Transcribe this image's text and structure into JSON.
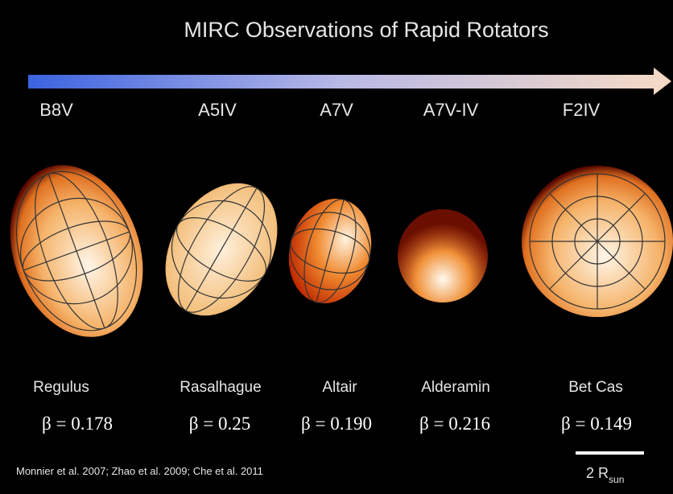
{
  "title": "MIRC Observations of Rapid Rotators",
  "stars": [
    {
      "spectral_type": "B8V",
      "name": "Regulus",
      "beta": "β = 0.178"
    },
    {
      "spectral_type": "A5IV",
      "name": "Rasalhague",
      "beta": "β = 0.25"
    },
    {
      "spectral_type": "A7V",
      "name": "Altair",
      "beta": "β = 0.190"
    },
    {
      "spectral_type": "A7V-IV",
      "name": "Alderamin",
      "beta": "β = 0.216"
    },
    {
      "spectral_type": "F2IV",
      "name": "Bet Cas",
      "beta": "β = 0.149"
    }
  ],
  "citation": "Monnier et al. 2007;  Zhao et al. 2009;  Che et al. 2011",
  "scale_bar": {
    "label": "2 R",
    "subscript": "sun"
  }
}
